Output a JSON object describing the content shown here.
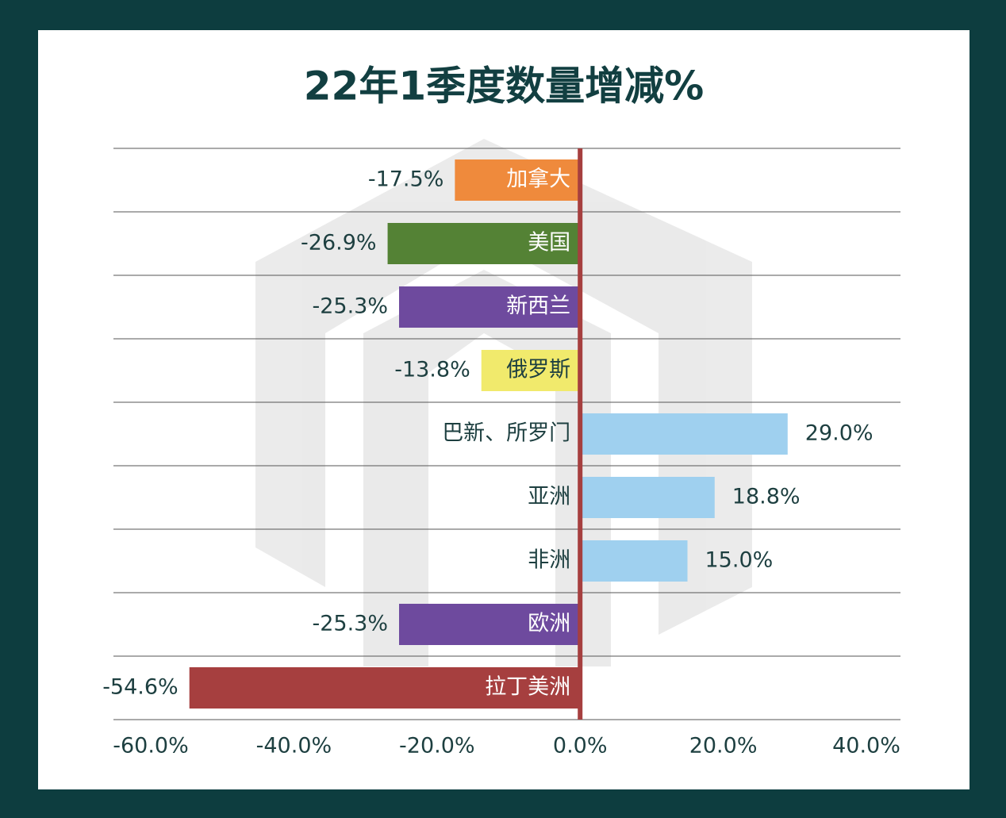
{
  "chart_data": {
    "type": "bar",
    "orientation": "horizontal",
    "title": "22年1季度数量增减%",
    "categories": [
      "加拿大",
      "美国",
      "新西兰",
      "俄罗斯",
      "巴新、所罗门",
      "亚洲",
      "非洲",
      "欧洲",
      "拉丁美洲"
    ],
    "values": [
      -17.5,
      -26.9,
      -25.3,
      -13.8,
      29.0,
      18.8,
      15.0,
      -25.3,
      -54.6
    ],
    "value_labels": [
      "-17.5%",
      "-26.9%",
      "-25.3%",
      "-13.8%",
      "29.0%",
      "18.8%",
      "15.0%",
      "-25.3%",
      "-54.6%"
    ],
    "colors": [
      "#ef8a3c",
      "#548235",
      "#6e4a9e",
      "#f1ea6c",
      "#9fd0ef",
      "#9fd0ef",
      "#9fd0ef",
      "#6e4a9e",
      "#a63f3f"
    ],
    "xlim": [
      -60,
      40
    ],
    "xticks": [
      {
        "value": -60,
        "label": "-60.0%"
      },
      {
        "value": -40,
        "label": "-40.0%"
      },
      {
        "value": -20,
        "label": "-20.0%"
      },
      {
        "value": 0,
        "label": "0.0%"
      },
      {
        "value": 20,
        "label": "20.0%"
      },
      {
        "value": 40,
        "label": "40.0%"
      }
    ],
    "grid": false
  }
}
